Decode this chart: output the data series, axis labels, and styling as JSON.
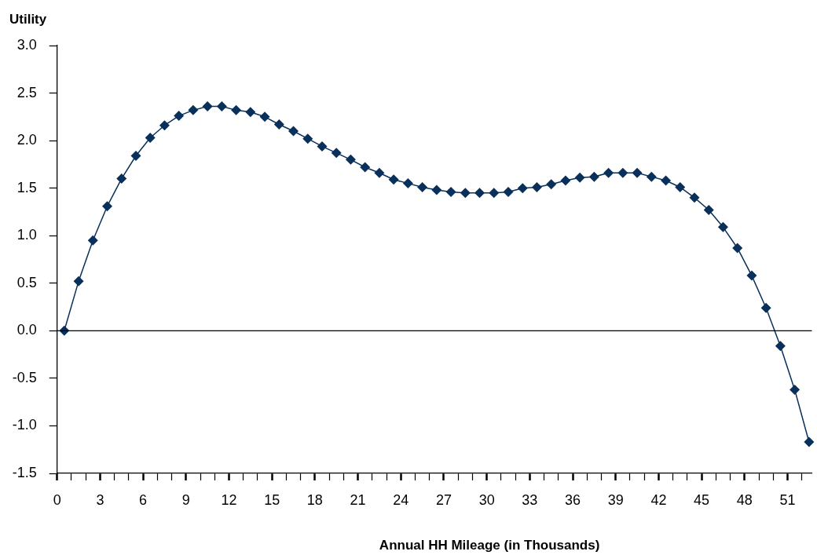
{
  "chart_data": {
    "type": "line",
    "xlabel": "Annual HH Mileage (in Thousands)",
    "ylabel": "Utility",
    "x": [
      0.5,
      1.5,
      2.5,
      3.5,
      4.5,
      5.5,
      6.5,
      7.5,
      8.5,
      9.5,
      10.5,
      11.5,
      12.5,
      13.5,
      14.5,
      15.5,
      16.5,
      17.5,
      18.5,
      19.5,
      20.5,
      21.5,
      22.5,
      23.5,
      24.5,
      25.5,
      26.5,
      27.5,
      28.5,
      29.5,
      30.5,
      31.5,
      32.5,
      33.5,
      34.5,
      35.5,
      36.5,
      37.5,
      38.5,
      39.5,
      40.5,
      41.5,
      42.5,
      43.5,
      44.5,
      45.5,
      46.5,
      47.5,
      48.5,
      49.5,
      50.5,
      51.5,
      52.5
    ],
    "series": [
      {
        "color": "#08305a",
        "values": [
          0.0,
          0.52,
          0.95,
          1.31,
          1.6,
          1.84,
          2.03,
          2.16,
          2.26,
          2.32,
          2.36,
          2.36,
          2.32,
          2.3,
          2.25,
          2.17,
          2.1,
          2.02,
          1.94,
          1.87,
          1.8,
          1.72,
          1.66,
          1.59,
          1.55,
          1.51,
          1.48,
          1.46,
          1.45,
          1.45,
          1.45,
          1.46,
          1.5,
          1.51,
          1.54,
          1.58,
          1.61,
          1.62,
          1.66,
          1.66,
          1.66,
          1.62,
          1.58,
          1.51,
          1.4,
          1.27,
          1.09,
          0.87,
          0.58,
          0.24,
          -0.16,
          -0.62,
          -1.17
        ]
      }
    ],
    "xlim": [
      0,
      52.7
    ],
    "xticks": [
      0,
      {
        "value": 1,
        "label": null
      },
      {
        "value": 2,
        "label": null
      },
      3,
      {
        "value": 4,
        "label": null
      },
      {
        "value": 5,
        "label": null
      },
      6,
      {
        "value": 7,
        "label": null
      },
      {
        "value": 8,
        "label": null
      },
      9,
      {
        "value": 10,
        "label": null
      },
      {
        "value": 11,
        "label": null
      },
      12,
      {
        "value": 13,
        "label": null
      },
      {
        "value": 14,
        "label": null
      },
      15,
      {
        "value": 16,
        "label": null
      },
      {
        "value": 17,
        "label": null
      },
      18,
      {
        "value": 19,
        "label": null
      },
      {
        "value": 20,
        "label": null
      },
      21,
      {
        "value": 22,
        "label": null
      },
      {
        "value": 23,
        "label": null
      },
      24,
      {
        "value": 25,
        "label": null
      },
      {
        "value": 26,
        "label": null
      },
      27,
      {
        "value": 28,
        "label": null
      },
      {
        "value": 29,
        "label": null
      },
      30,
      {
        "value": 31,
        "label": null
      },
      {
        "value": 32,
        "label": null
      },
      33,
      {
        "value": 34,
        "label": null
      },
      {
        "value": 35,
        "label": null
      },
      36,
      {
        "value": 37,
        "label": null
      },
      {
        "value": 38,
        "label": null
      },
      39,
      {
        "value": 40,
        "label": null
      },
      {
        "value": 41,
        "label": null
      },
      42,
      {
        "value": 43,
        "label": null
      },
      {
        "value": 44,
        "label": null
      },
      45,
      {
        "value": 46,
        "label": null
      },
      {
        "value": 47,
        "label": null
      },
      48,
      {
        "value": 49,
        "label": null
      },
      {
        "value": 50,
        "label": null
      },
      51,
      {
        "value": 52,
        "label": null
      }
    ],
    "ylim": [
      -1.5,
      3
    ],
    "yticks": [
      {
        "value": -1.5,
        "label": "-1.5"
      },
      {
        "value": -1,
        "label": "-1.0"
      },
      {
        "value": -0.5,
        "label": "-0.5"
      },
      {
        "value": 0,
        "label": "0.0"
      },
      {
        "value": 0.5,
        "label": "0.5"
      },
      {
        "value": 1,
        "label": "1.0"
      },
      {
        "value": 1.5,
        "label": "1.5"
      },
      {
        "value": 2,
        "label": "2.0"
      },
      {
        "value": 2.5,
        "label": "2.5"
      },
      {
        "value": 3,
        "label": "3.0"
      }
    ],
    "ref_lines": [
      {
        "axis": "y",
        "value": 0
      }
    ],
    "marker": "diamond",
    "line_style": "solid",
    "grid": false,
    "legend": false
  }
}
